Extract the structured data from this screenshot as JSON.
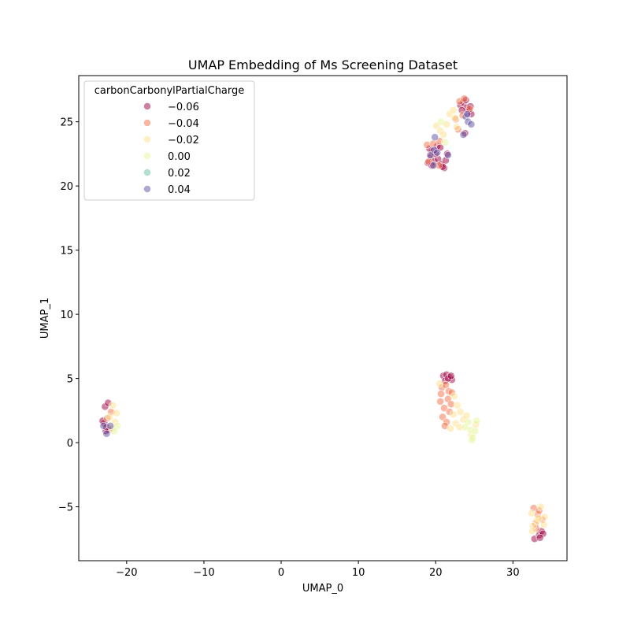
{
  "chart_data": {
    "type": "scatter",
    "title": "UMAP Embedding of Ms Screening Dataset",
    "xlabel": "UMAP_0",
    "ylabel": "UMAP_1",
    "xlim": [
      -26.2,
      37
    ],
    "ylim": [
      -9.2,
      28.6
    ],
    "xticks": [
      -20,
      -10,
      0,
      10,
      20,
      30
    ],
    "xtick_labels": [
      "−20",
      "−10",
      "0",
      "10",
      "20",
      "30"
    ],
    "yticks": [
      -5,
      0,
      5,
      10,
      15,
      20,
      25
    ],
    "ytick_labels": [
      "−5",
      "0",
      "5",
      "10",
      "15",
      "20",
      "25"
    ],
    "grid": false,
    "legend": {
      "title": "carbonCarbonylPartialCharge",
      "placement": "top-left",
      "entries": [
        {
          "label": "−0.06",
          "color": "#9e0142"
        },
        {
          "label": "−0.04",
          "color": "#f46d43"
        },
        {
          "label": "−0.02",
          "color": "#fee08b"
        },
        {
          "label": "0.00",
          "color": "#e6f598"
        },
        {
          "label": "0.02",
          "color": "#66c2a5"
        },
        {
          "label": "0.04",
          "color": "#5e4fa2"
        }
      ]
    },
    "point_alpha": 0.5,
    "series": [
      {
        "name": "−0.06",
        "color": "#9e0142",
        "points": [
          [
            -22.8,
            2.8
          ],
          [
            -22.4,
            3.1
          ],
          [
            -22.9,
            1.5
          ],
          [
            -22.6,
            1.2
          ],
          [
            -23.1,
            1.7
          ],
          [
            -22.3,
            1.0
          ],
          [
            -22.7,
            0.9
          ],
          [
            21.0,
            5.2
          ],
          [
            21.4,
            5.3
          ],
          [
            21.8,
            5.1
          ],
          [
            22.1,
            4.9
          ],
          [
            21.2,
            4.8
          ],
          [
            21.6,
            5.0
          ],
          [
            22.0,
            5.2
          ],
          [
            32.8,
            -7.5
          ],
          [
            33.4,
            -7.2
          ],
          [
            33.7,
            -6.9
          ],
          [
            33.9,
            -7.1
          ],
          [
            33.5,
            -7.4
          ],
          [
            19.0,
            21.8
          ],
          [
            19.4,
            22.3
          ],
          [
            19.8,
            21.9
          ],
          [
            20.3,
            22.1
          ],
          [
            20.7,
            21.7
          ],
          [
            21.1,
            21.4
          ],
          [
            19.6,
            22.7
          ],
          [
            20.2,
            23.1
          ],
          [
            20.6,
            23.0
          ],
          [
            19.2,
            22.9
          ],
          [
            21.3,
            22.0
          ],
          [
            20.9,
            21.5
          ],
          [
            21.5,
            22.5
          ],
          [
            19.5,
            21.6
          ],
          [
            20.0,
            22.5
          ],
          [
            23.2,
            26.3
          ],
          [
            23.6,
            26.5
          ],
          [
            24.0,
            26.1
          ],
          [
            24.3,
            25.8
          ],
          [
            24.5,
            26.2
          ],
          [
            23.4,
            25.9
          ],
          [
            23.9,
            26.7
          ],
          [
            24.6,
            25.6
          ],
          [
            23.8,
            24.1
          ]
        ]
      },
      {
        "name": "−0.04",
        "color": "#f46d43",
        "points": [
          [
            -22.0,
            2.4
          ],
          [
            -22.5,
            1.9
          ],
          [
            20.8,
            4.3
          ],
          [
            21.3,
            4.5
          ],
          [
            21.7,
            4.0
          ],
          [
            20.6,
            3.2
          ],
          [
            21.1,
            2.7
          ],
          [
            21.6,
            3.4
          ],
          [
            22.0,
            3.0
          ],
          [
            20.9,
            2.0
          ],
          [
            21.4,
            1.6
          ],
          [
            21.8,
            2.4
          ],
          [
            20.7,
            3.8
          ],
          [
            22.1,
            3.9
          ],
          [
            21.2,
            1.3
          ],
          [
            32.7,
            -5.1
          ],
          [
            33.2,
            -5.6
          ],
          [
            33.8,
            -6.0
          ],
          [
            32.9,
            -6.3
          ],
          [
            33.4,
            -5.3
          ],
          [
            33.0,
            -6.7
          ],
          [
            18.9,
            23.2
          ],
          [
            19.7,
            23.3
          ],
          [
            20.5,
            23.5
          ],
          [
            19.1,
            21.9
          ],
          [
            20.4,
            21.6
          ],
          [
            22.6,
            25.2
          ],
          [
            23.1,
            26.6
          ],
          [
            23.7,
            26.8
          ],
          [
            24.4,
            26.0
          ],
          [
            23.5,
            25.5
          ],
          [
            22.9,
            24.4
          ]
        ]
      },
      {
        "name": "−0.02",
        "color": "#fee08b",
        "points": [
          [
            -21.8,
            2.9
          ],
          [
            -22.2,
            2.0
          ],
          [
            -21.5,
            1.6
          ],
          [
            -21.9,
            1.1
          ],
          [
            -21.3,
            2.3
          ],
          [
            22.4,
            3.6
          ],
          [
            22.8,
            2.9
          ],
          [
            23.2,
            2.4
          ],
          [
            23.6,
            1.8
          ],
          [
            22.6,
            1.5
          ],
          [
            23.1,
            1.2
          ],
          [
            24.0,
            2.1
          ],
          [
            22.3,
            2.2
          ],
          [
            20.5,
            4.6
          ],
          [
            21.9,
            1.1
          ],
          [
            24.6,
            0.6
          ],
          [
            25.2,
            1.4
          ],
          [
            32.4,
            -5.5
          ],
          [
            33.6,
            -5.0
          ],
          [
            34.1,
            -5.8
          ],
          [
            33.1,
            -6.1
          ],
          [
            32.6,
            -6.5
          ],
          [
            33.3,
            -5.9
          ],
          [
            32.5,
            -6.9
          ],
          [
            34.0,
            -6.4
          ],
          [
            20.1,
            24.7
          ],
          [
            20.6,
            24.3
          ],
          [
            21.4,
            24.8
          ],
          [
            21.8,
            25.6
          ],
          [
            22.3,
            25.9
          ],
          [
            22.7,
            24.6
          ],
          [
            21.0,
            24.0
          ],
          [
            22.5,
            25.3
          ]
        ]
      },
      {
        "name": "0.00",
        "color": "#e6f598",
        "points": [
          [
            -21.2,
            1.3
          ],
          [
            -21.6,
            0.9
          ],
          [
            24.5,
            1.0
          ],
          [
            24.8,
            0.4
          ],
          [
            25.1,
            0.9
          ],
          [
            25.3,
            1.7
          ],
          [
            24.2,
            1.6
          ],
          [
            23.8,
            1.2
          ],
          [
            24.7,
            0.2
          ],
          [
            21.2,
            23.4
          ],
          [
            20.7,
            25.0
          ]
        ]
      },
      {
        "name": "0.04",
        "color": "#5e4fa2",
        "points": [
          [
            -23.0,
            1.3
          ],
          [
            -22.1,
            1.3
          ],
          [
            -22.6,
            0.7
          ],
          [
            19.3,
            22.4
          ],
          [
            19.8,
            22.8
          ],
          [
            20.2,
            22.6
          ],
          [
            19.9,
            23.8
          ],
          [
            21.6,
            22.4
          ],
          [
            19.7,
            21.6
          ],
          [
            23.9,
            25.4
          ],
          [
            24.2,
            25.0
          ],
          [
            24.6,
            24.8
          ],
          [
            23.6,
            24.0
          ],
          [
            24.1,
            25.6
          ]
        ]
      }
    ]
  }
}
